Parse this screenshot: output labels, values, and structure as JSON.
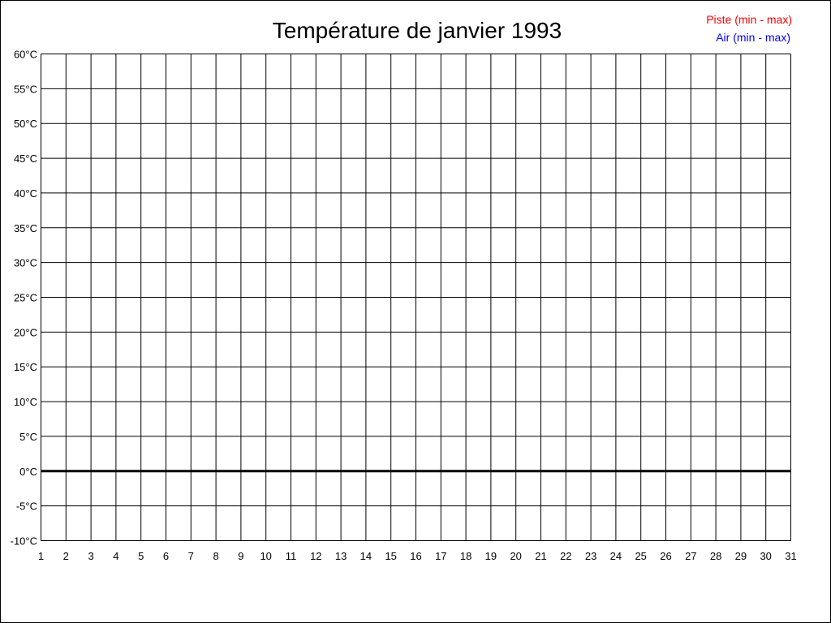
{
  "chart_data": {
    "type": "line",
    "title": "Température de janvier 1993",
    "xlabel": "",
    "ylabel": "",
    "x_ticks": [
      1,
      2,
      3,
      4,
      5,
      6,
      7,
      8,
      9,
      10,
      11,
      12,
      13,
      14,
      15,
      16,
      17,
      18,
      19,
      20,
      21,
      22,
      23,
      24,
      25,
      26,
      27,
      28,
      29,
      30,
      31
    ],
    "y_ticks": [
      60,
      55,
      50,
      45,
      40,
      35,
      30,
      25,
      20,
      15,
      10,
      5,
      0,
      -5,
      -10
    ],
    "y_unit": "°C",
    "xlim": [
      1,
      31
    ],
    "ylim": [
      -10,
      60
    ],
    "grid": true,
    "legend_position": "top-right",
    "series": [
      {
        "name": "Piste (min - max)",
        "color": "#ff0000",
        "values": []
      },
      {
        "name": "Air (min - max)",
        "color": "#0000ff",
        "values": []
      }
    ],
    "zero_line": true
  }
}
